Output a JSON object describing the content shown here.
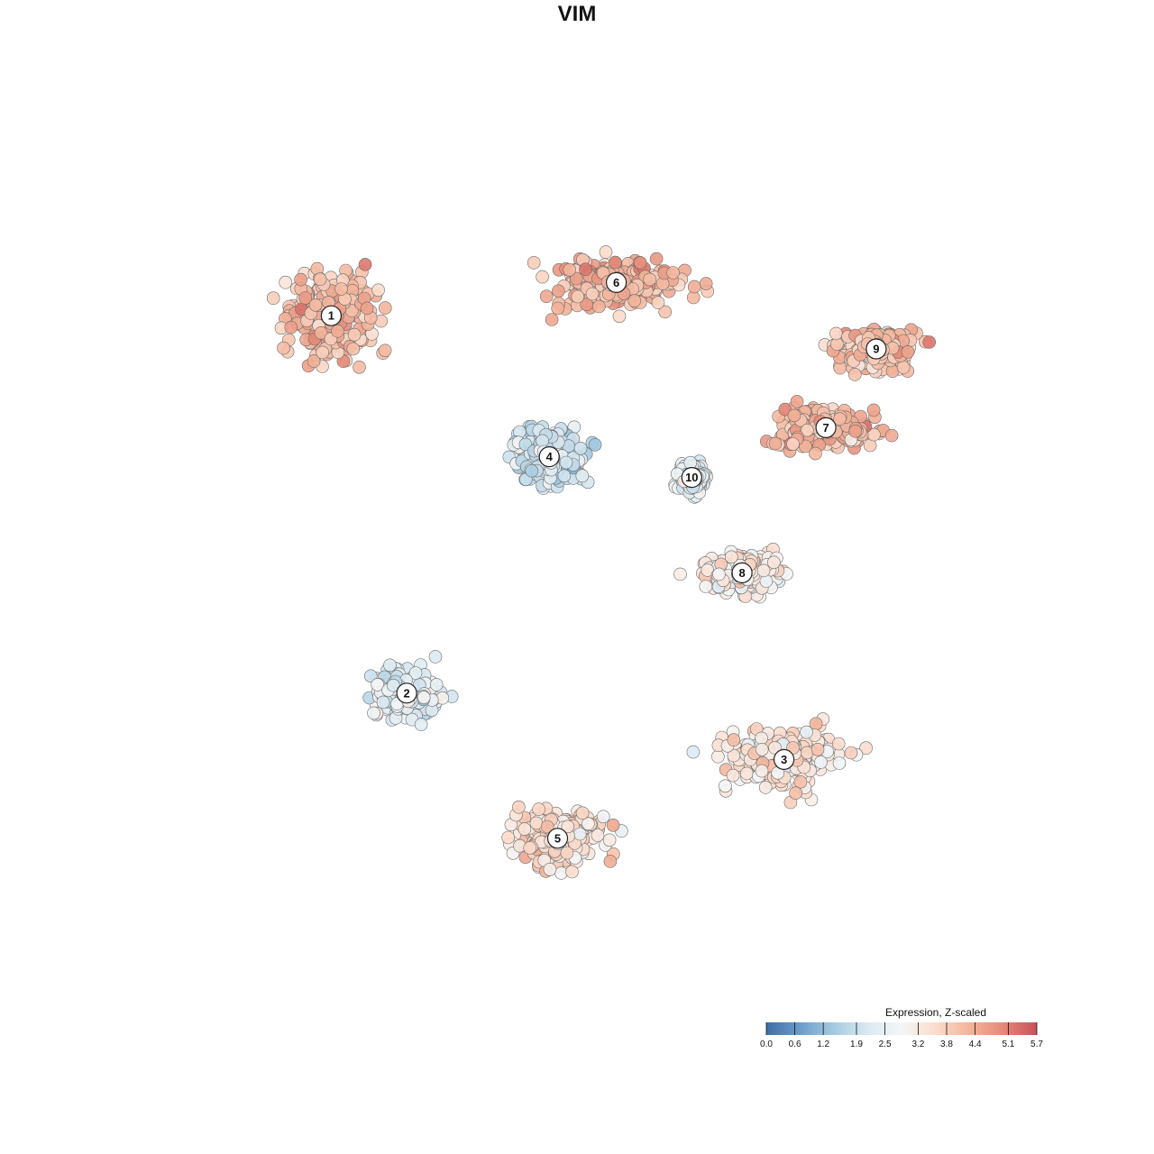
{
  "chart_data": {
    "type": "scatter",
    "title": "VIM",
    "xlabel": "",
    "ylabel": "",
    "grid": false,
    "legend": {
      "title": "Expression, Z-scaled",
      "placement": "bottom-right",
      "ticks": [
        "0.0",
        "0.6",
        "1.2",
        "1.9",
        "2.5",
        "3.2",
        "3.8",
        "4.4",
        "5.1",
        "5.7"
      ],
      "range": [
        0.0,
        5.7
      ]
    },
    "colorscale": [
      "#3f6ea7",
      "#6a9ccb",
      "#a6cbe0",
      "#dbe9f2",
      "#f4f6f6",
      "#fbdccc",
      "#f3b49a",
      "#e58a78",
      "#c8505a"
    ],
    "xlim": [
      0,
      100
    ],
    "ylim": [
      0,
      100
    ],
    "clusters": [
      {
        "label": "1",
        "x": 18,
        "y": 81.5,
        "mean_expr": 4.1,
        "spread": [
          10,
          10
        ]
      },
      {
        "label": "6",
        "x": 52,
        "y": 85.5,
        "mean_expr": 4.3,
        "spread": [
          14,
          5
        ]
      },
      {
        "label": "9",
        "x": 83,
        "y": 77.5,
        "mean_expr": 4.1,
        "spread": [
          8,
          4
        ]
      },
      {
        "label": "7",
        "x": 77,
        "y": 68,
        "mean_expr": 4.2,
        "spread": [
          11,
          4.5
        ]
      },
      {
        "label": "4",
        "x": 44,
        "y": 64.5,
        "mean_expr": 1.9,
        "spread": [
          7,
          6
        ]
      },
      {
        "label": "10",
        "x": 61,
        "y": 62,
        "mean_expr": 2.4,
        "spread": [
          3,
          3
        ]
      },
      {
        "label": "8",
        "x": 67,
        "y": 50.5,
        "mean_expr": 3.1,
        "spread": [
          8,
          4
        ]
      },
      {
        "label": "2",
        "x": 27,
        "y": 36,
        "mean_expr": 2.3,
        "spread": [
          7,
          5
        ]
      },
      {
        "label": "3",
        "x": 72,
        "y": 28,
        "mean_expr": 3.4,
        "spread": [
          12,
          6
        ]
      },
      {
        "label": "5",
        "x": 45,
        "y": 18.5,
        "mean_expr": 3.5,
        "spread": [
          10,
          6
        ]
      }
    ]
  }
}
